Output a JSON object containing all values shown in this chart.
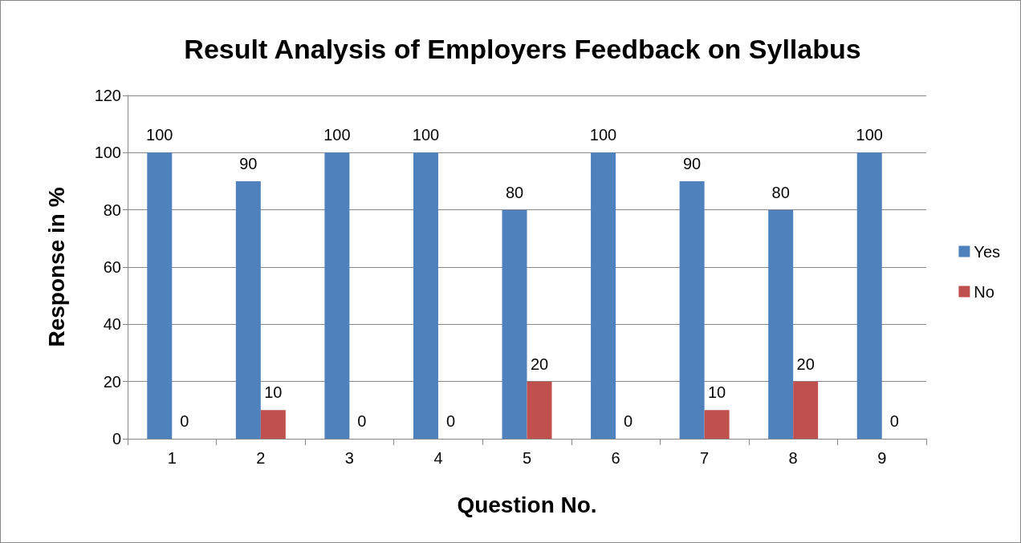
{
  "chart_data": {
    "type": "bar",
    "title": "Result Analysis of Employers Feedback on Syllabus",
    "xlabel": "Question No.",
    "ylabel": "Response in %",
    "categories": [
      "1",
      "2",
      "3",
      "4",
      "5",
      "6",
      "7",
      "8",
      "9"
    ],
    "series": [
      {
        "name": "Yes",
        "color": "#4f81bd",
        "values": [
          100,
          90,
          100,
          100,
          80,
          100,
          90,
          80,
          100
        ]
      },
      {
        "name": "No",
        "color": "#c0504d",
        "values": [
          0,
          10,
          0,
          0,
          20,
          0,
          10,
          20,
          0
        ]
      }
    ],
    "ylim": [
      0,
      120
    ],
    "yticks": [
      0,
      20,
      40,
      60,
      80,
      100,
      120
    ],
    "grid": "y",
    "legend": "right",
    "data_labels": true
  }
}
